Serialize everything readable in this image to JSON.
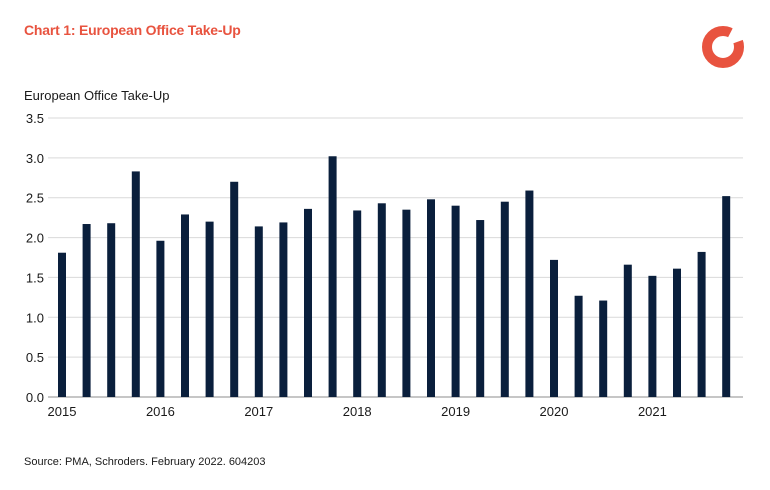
{
  "header": {
    "title": "Chart 1:  European Office Take-Up",
    "logo_icon": "schroders-ring-logo"
  },
  "footer": {
    "source": "Source: PMA, Schroders. February 2022. 604203"
  },
  "colors": {
    "bar": "#0a1f3c",
    "title": "#e8533f",
    "logo": "#e8533f",
    "grid": "#d9d9d9"
  },
  "chart_data": {
    "type": "bar",
    "title": "Chart 1:  European Office Take-Up",
    "ylabel": "European Office Take-Up",
    "xlabel": "",
    "ylim": [
      0,
      3.5
    ],
    "yticks": [
      "0.0",
      "0.5",
      "1.0",
      "1.5",
      "2.0",
      "2.5",
      "3.0",
      "3.5"
    ],
    "year_labels": [
      {
        "label": "2015",
        "index": 0
      },
      {
        "label": "2016",
        "index": 4
      },
      {
        "label": "2017",
        "index": 8
      },
      {
        "label": "2018",
        "index": 12
      },
      {
        "label": "2019",
        "index": 16
      },
      {
        "label": "2020",
        "index": 20
      },
      {
        "label": "2021",
        "index": 24
      }
    ],
    "categories": [
      "2015 Q1",
      "2015 Q2",
      "2015 Q3",
      "2015 Q4",
      "2016 Q1",
      "2016 Q2",
      "2016 Q3",
      "2016 Q4",
      "2017 Q1",
      "2017 Q2",
      "2017 Q3",
      "2017 Q4",
      "2018 Q1",
      "2018 Q2",
      "2018 Q3",
      "2018 Q4",
      "2019 Q1",
      "2019 Q2",
      "2019 Q3",
      "2019 Q4",
      "2020 Q1",
      "2020 Q2",
      "2020 Q3",
      "2020 Q4",
      "2021 Q1",
      "2021 Q2",
      "2021 Q3",
      "2021 Q4"
    ],
    "values": [
      1.81,
      2.17,
      2.18,
      2.83,
      1.96,
      2.29,
      2.2,
      2.7,
      2.14,
      2.19,
      2.36,
      3.02,
      2.34,
      2.43,
      2.35,
      2.48,
      2.4,
      2.22,
      2.45,
      2.59,
      1.72,
      1.27,
      1.21,
      1.66,
      1.52,
      1.61,
      1.82,
      2.52
    ],
    "grid": true,
    "legend": "none"
  }
}
